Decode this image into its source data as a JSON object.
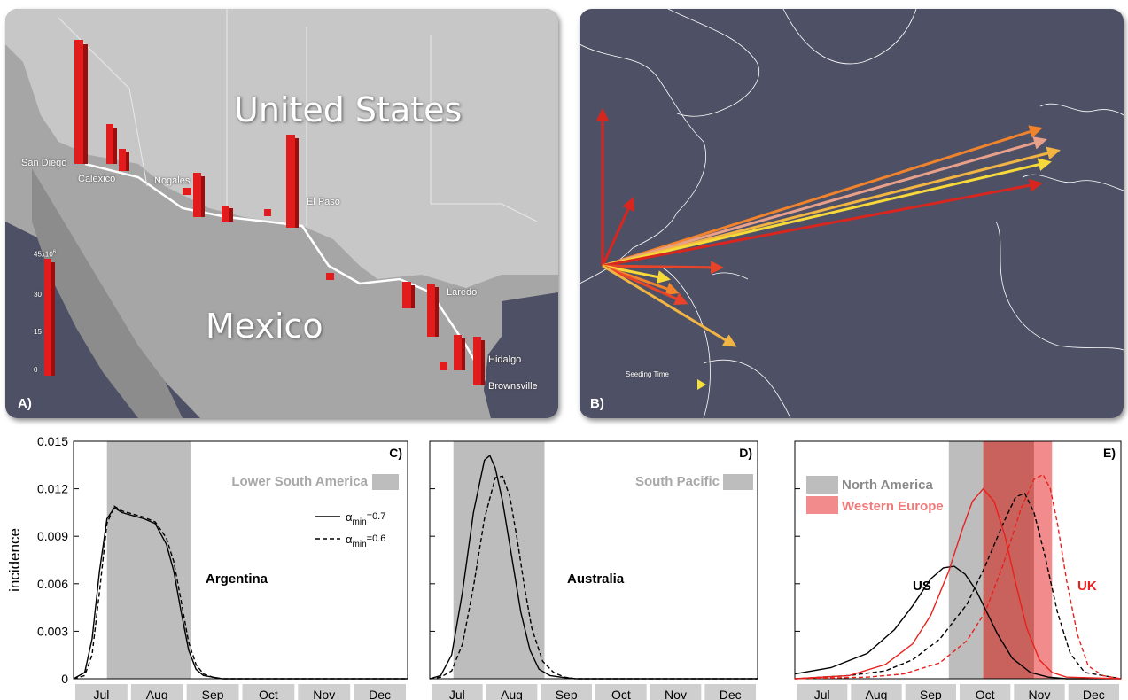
{
  "panelA": {
    "tag": "A)",
    "country_us": "United States",
    "country_mx": "Mexico",
    "cities": [
      "San Diego",
      "Calexico",
      "Nogales",
      "El Paso",
      "Laredo",
      "Hidalgo",
      "Brownsville"
    ],
    "scale": {
      "top": "45x10",
      "top_exp": "6",
      "labels": [
        "30",
        "15",
        "0"
      ]
    }
  },
  "panelB": {
    "tag": "B)",
    "legend": "Seeding Time"
  },
  "months": [
    "Jul",
    "Aug",
    "Sep",
    "Oct",
    "Nov",
    "Dec"
  ],
  "colors": {
    "band_gray": "#bdbdbd",
    "band_red_light": "#f28b8b",
    "band_red_dark": "#c9615c",
    "us_line": "#000000",
    "uk_line": "#e8211c",
    "panel_bg": "#4e5065"
  },
  "chart_data": [
    {
      "type": "line",
      "tag": "C)",
      "ylabel": "incidence",
      "yticks": [
        "0.015",
        "0.012",
        "0.009",
        "0.006",
        "0.003",
        "0"
      ],
      "ylim": [
        0,
        0.015
      ],
      "xlim": [
        0,
        180
      ],
      "shaded_region": {
        "label": "Lower South America",
        "x": [
          18,
          63
        ]
      },
      "annotation": "Argentina",
      "legend": {
        "solid": "α",
        "solid_sub": "min",
        "solid_val": "=0.7",
        "dashed": "α",
        "dashed_sub": "min",
        "dashed_val": "=0.6"
      },
      "series": [
        {
          "style": "solid",
          "x": [
            0,
            6,
            10,
            14,
            18,
            22,
            26,
            32,
            38,
            44,
            50,
            54,
            58,
            62,
            66,
            70,
            75,
            80,
            90,
            110,
            180
          ],
          "values": [
            0,
            0.0004,
            0.0025,
            0.0068,
            0.0101,
            0.0108,
            0.0105,
            0.0103,
            0.0101,
            0.0098,
            0.0085,
            0.0068,
            0.0042,
            0.0018,
            0.0006,
            0.0002,
            0.0001,
            0,
            0,
            0,
            0
          ]
        },
        {
          "style": "dashed",
          "x": [
            0,
            6,
            10,
            14,
            18,
            22,
            26,
            32,
            38,
            44,
            50,
            54,
            58,
            62,
            66,
            70,
            75,
            80,
            90,
            110,
            180
          ],
          "values": [
            0,
            0.0002,
            0.0015,
            0.0055,
            0.0098,
            0.0109,
            0.0106,
            0.0104,
            0.0102,
            0.0099,
            0.0089,
            0.0074,
            0.0049,
            0.0023,
            0.0009,
            0.0003,
            0.0001,
            0,
            0,
            0,
            0
          ]
        }
      ]
    },
    {
      "type": "line",
      "tag": "D)",
      "ylim": [
        0,
        0.015
      ],
      "xlim": [
        0,
        180
      ],
      "shaded_region": {
        "label": "South Pacific",
        "x": [
          13,
          63
        ]
      },
      "annotation": "Australia",
      "series": [
        {
          "style": "solid",
          "x": [
            0,
            6,
            12,
            18,
            24,
            30,
            33,
            36,
            40,
            45,
            50,
            55,
            60,
            66,
            72,
            80,
            90,
            180
          ],
          "values": [
            0,
            0.0002,
            0.0015,
            0.0055,
            0.0105,
            0.0138,
            0.0141,
            0.0133,
            0.0112,
            0.0077,
            0.0042,
            0.0018,
            0.0006,
            0.0002,
            0.0001,
            0,
            0,
            0
          ]
        },
        {
          "style": "dashed",
          "x": [
            0,
            6,
            12,
            18,
            24,
            30,
            36,
            40,
            44,
            48,
            52,
            56,
            62,
            68,
            74,
            80,
            90,
            180
          ],
          "values": [
            0,
            0.0001,
            0.0005,
            0.0022,
            0.0058,
            0.0101,
            0.0127,
            0.0128,
            0.0115,
            0.0088,
            0.0058,
            0.0032,
            0.0011,
            0.0004,
            0.0001,
            0,
            0,
            0
          ]
        }
      ]
    },
    {
      "type": "line",
      "tag": "E)",
      "ylim": [
        0,
        0.015
      ],
      "xlim": [
        0,
        180
      ],
      "shaded_regions": [
        {
          "label": "North America",
          "x": [
            85,
            104
          ],
          "color": "#bdbdbd"
        },
        {
          "label": "Western Europe",
          "x": [
            104,
            142
          ],
          "color": "#f28b8b"
        }
      ],
      "annotations": [
        "US",
        "UK"
      ],
      "series": [
        {
          "name": "US",
          "style": "solid",
          "color": "#000000",
          "x": [
            0,
            20,
            40,
            55,
            65,
            75,
            82,
            88,
            94,
            100,
            106,
            112,
            120,
            130,
            140,
            150,
            180
          ],
          "values": [
            0.0003,
            0.0007,
            0.0016,
            0.0031,
            0.0046,
            0.0063,
            0.007,
            0.0071,
            0.0066,
            0.0056,
            0.0042,
            0.0028,
            0.0013,
            0.0004,
            0.0001,
            0,
            0
          ]
        },
        {
          "name": "US",
          "style": "dashed",
          "color": "#000000",
          "x": [
            0,
            30,
            50,
            65,
            80,
            95,
            105,
            115,
            122,
            127,
            132,
            138,
            145,
            152,
            160,
            180
          ],
          "values": [
            0,
            0.0002,
            0.0005,
            0.0012,
            0.0025,
            0.0047,
            0.0071,
            0.0098,
            0.0115,
            0.0117,
            0.0105,
            0.0078,
            0.0042,
            0.0016,
            0.0004,
            0
          ]
        },
        {
          "name": "UK",
          "style": "solid",
          "color": "#e8211c",
          "x": [
            0,
            30,
            50,
            65,
            75,
            85,
            92,
            98,
            104,
            110,
            116,
            122,
            128,
            135,
            142,
            150,
            180
          ],
          "values": [
            0,
            0.0002,
            0.0009,
            0.0022,
            0.004,
            0.0068,
            0.0093,
            0.0112,
            0.012,
            0.0112,
            0.009,
            0.006,
            0.0032,
            0.0012,
            0.0004,
            0.0001,
            0
          ]
        },
        {
          "name": "UK",
          "style": "dashed",
          "color": "#e8211c",
          "x": [
            0,
            40,
            60,
            80,
            95,
            105,
            115,
            125,
            132,
            137,
            141,
            145,
            150,
            156,
            162,
            170,
            180
          ],
          "values": [
            0,
            0.0001,
            0.0003,
            0.001,
            0.0024,
            0.0042,
            0.0072,
            0.0108,
            0.0126,
            0.0129,
            0.012,
            0.0098,
            0.0062,
            0.0028,
            0.0008,
            0.0002,
            0
          ]
        }
      ]
    }
  ]
}
